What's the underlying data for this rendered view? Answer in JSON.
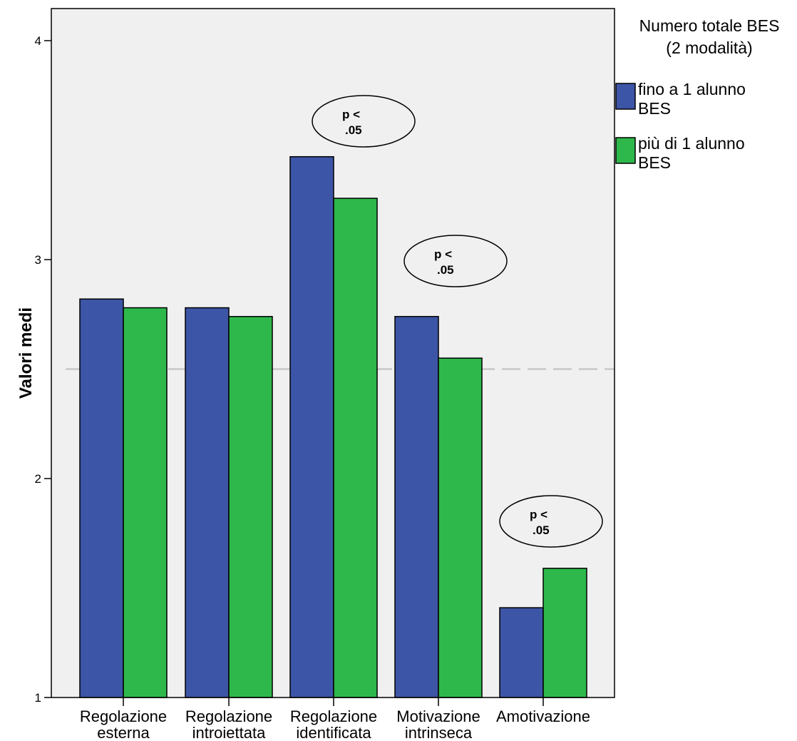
{
  "chart_data": {
    "type": "bar",
    "ylabel": "Valori medi",
    "xlabel": "",
    "ylim": [
      1,
      4.15
    ],
    "yticks": [
      "1",
      "2",
      "3",
      "4"
    ],
    "categories": [
      [
        "Regolazione",
        "esterna"
      ],
      [
        "Regolazione",
        "introiettata"
      ],
      [
        "Regolazione",
        "identificata"
      ],
      [
        "Motivazione",
        "intrinseca"
      ],
      [
        "Amotivazione",
        ""
      ]
    ],
    "series": [
      {
        "name": "fino a 1 alunno BES",
        "values": [
          2.82,
          2.78,
          3.47,
          2.74,
          1.41
        ]
      },
      {
        "name": "più di 1 alunno BES",
        "values": [
          2.78,
          2.74,
          3.28,
          2.55,
          1.59
        ]
      }
    ],
    "reference_line": 2.5,
    "legend": {
      "title_lines": [
        "Numero totale BES",
        "(2 modalità)"
      ],
      "entries": [
        {
          "lines": [
            "fino a 1 alunno",
            "BES"
          ]
        },
        {
          "lines": [
            "più di 1 alunno",
            "BES"
          ]
        }
      ],
      "placement": "right"
    },
    "annotations": [
      {
        "category_index": 2,
        "lines": [
          "p <",
          ".05"
        ]
      },
      {
        "category_index": 3,
        "lines": [
          "p <",
          ".05"
        ]
      },
      {
        "category_index": 4,
        "lines": [
          "p <",
          ".05"
        ]
      }
    ],
    "colors": {
      "series": [
        "#3d55a6",
        "#2eb84b"
      ],
      "plot_background": "#f0f0f0",
      "reference_line": "#c8c8c8",
      "bar_border": "#000000"
    },
    "grid": false
  }
}
